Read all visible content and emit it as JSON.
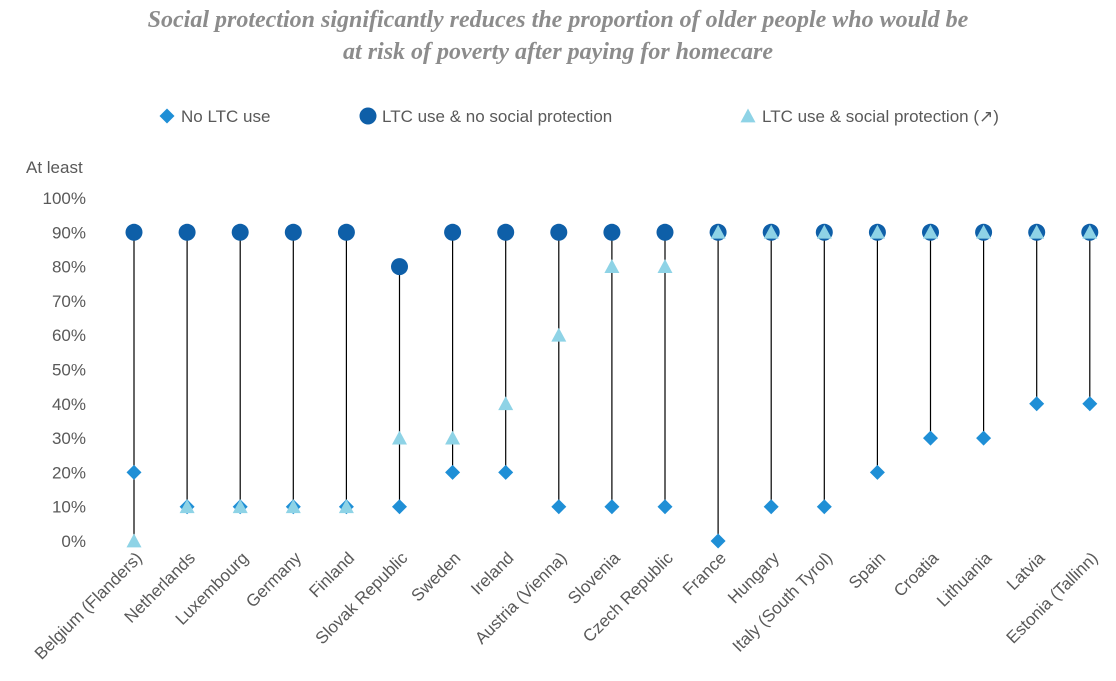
{
  "chart_data": {
    "type": "dot-range",
    "title_lines": [
      "Social protection significantly reduces the proportion of older people who would be",
      "at risk of poverty after paying for homecare"
    ],
    "y_axis_header": "At least",
    "ylim": [
      0,
      100
    ],
    "y_ticks": [
      "0%",
      "10%",
      "20%",
      "30%",
      "40%",
      "50%",
      "60%",
      "70%",
      "80%",
      "90%",
      "100%"
    ],
    "grid": false,
    "legend_position": "top",
    "categories": [
      "Belgium (Flanders)",
      "Netherlands",
      "Luxembourg",
      "Germany",
      "Finland",
      "Slovak Republic",
      "Sweden",
      "Ireland",
      "Austria (Vienna)",
      "Slovenia",
      "Czech Republic",
      "France",
      "Hungary",
      "Italy (South Tyrol)",
      "Spain",
      "Croatia",
      "Lithuania",
      "Latvia",
      "Estonia (Tallinn)"
    ],
    "series": [
      {
        "name": "No LTC use",
        "marker": "diamond",
        "color": "#1f8fd6",
        "values": [
          20,
          10,
          10,
          10,
          10,
          10,
          20,
          20,
          10,
          10,
          10,
          0,
          10,
          10,
          20,
          30,
          30,
          40,
          40
        ]
      },
      {
        "name": "LTC use & no social protection",
        "marker": "circle",
        "color": "#0e5fa8",
        "values": [
          90,
          90,
          90,
          90,
          90,
          80,
          90,
          90,
          90,
          90,
          90,
          90,
          90,
          90,
          90,
          90,
          90,
          90,
          90
        ]
      },
      {
        "name": "LTC use & social protection (↗)",
        "marker": "triangle",
        "color": "#8ed3e6",
        "values": [
          0,
          10,
          10,
          10,
          10,
          30,
          30,
          40,
          60,
          80,
          80,
          90,
          90,
          90,
          90,
          90,
          90,
          90,
          90
        ]
      }
    ]
  }
}
